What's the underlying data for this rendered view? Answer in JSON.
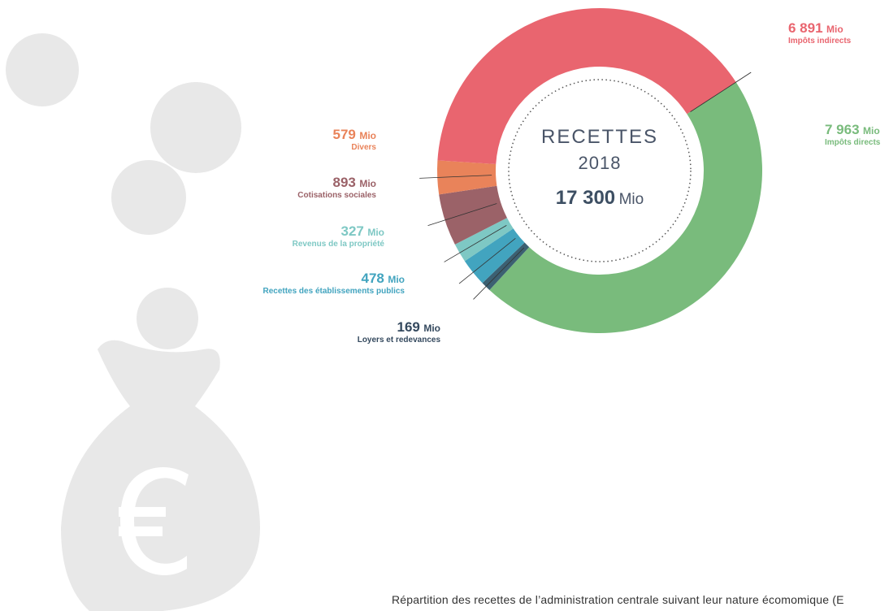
{
  "chart_data": {
    "type": "donut",
    "center_title": "RECETTES",
    "center_year": "2018",
    "center_total": "17 300",
    "unit": "Mio",
    "categories": [
      "Impôts directs",
      "Loyers et redevances",
      "Recettes des  établissements publics",
      "Revenus de la propriété",
      "Cotisations sociales",
      "Divers",
      "Impôts indirects"
    ],
    "values": [
      7963,
      169,
      478,
      327,
      893,
      579,
      6891
    ],
    "value_labels": [
      "7 963",
      "169",
      "478",
      "327",
      "893",
      "579",
      "6 891"
    ],
    "colors": [
      "#79bb7c",
      "#3c6072",
      "#42a4bf",
      "#7ec8c4",
      "#9b6268",
      "#e9835a",
      "#e9656f"
    ],
    "caption": "Répartition des recettes de l’administration centrale suivant leur nature écomomique (E"
  }
}
